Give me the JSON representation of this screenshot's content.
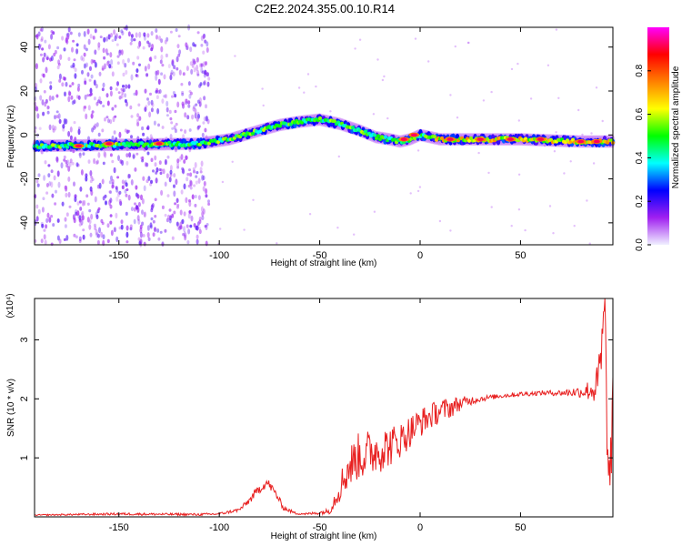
{
  "chart_data": [
    {
      "type": "heatmap",
      "title": "C2E2.2024.355.00.10.R14",
      "xlabel": "Height of straight line (km)",
      "ylabel": "Frequency (Hz)",
      "xlim": [
        -192,
        96
      ],
      "ylim": [
        -50,
        49
      ],
      "xticks": [
        -150,
        -100,
        -50,
        0,
        50
      ],
      "yticks": [
        -40,
        -20,
        0,
        20,
        40
      ],
      "colorbar": {
        "label": "Normalized spectral amplitude",
        "range": [
          0,
          1
        ],
        "ticks": [
          "0.0",
          "0.2",
          "0.4",
          "0.6",
          "0.8"
        ],
        "colors": [
          "#f0f0ff",
          "#a020f0",
          "#0000ff",
          "#00ffff",
          "#00ff00",
          "#ffff00",
          "#ff8000",
          "#ff0000",
          "#ff00ff"
        ]
      },
      "ridge": {
        "x": [
          -192,
          -150,
          -110,
          -95,
          -80,
          -70,
          -60,
          -50,
          -40,
          -30,
          -22,
          -15,
          -10,
          -5,
          0,
          10,
          30,
          50,
          80,
          96
        ],
        "y": [
          -5,
          -4.5,
          -4,
          -2,
          2,
          4.5,
          6,
          7,
          5,
          2,
          -1,
          -2,
          -3,
          -2,
          0,
          -2,
          -2,
          -2,
          -3,
          -3
        ]
      },
      "hotspots": [
        {
          "x": -170,
          "y": -5
        },
        {
          "x": -155,
          "y": -4
        },
        {
          "x": -130,
          "y": -4
        },
        {
          "x": -8,
          "y": -2
        },
        {
          "x": -3,
          "y": 0
        },
        {
          "x": 15,
          "y": -2
        },
        {
          "x": 30,
          "y": -2
        },
        {
          "x": 45,
          "y": -2
        },
        {
          "x": 60,
          "y": -2
        },
        {
          "x": 80,
          "y": -3
        },
        {
          "x": 88,
          "y": -3
        }
      ]
    },
    {
      "type": "line",
      "xlabel": "Height of straight line (km)",
      "ylabel": "SNR (10 * v/v)",
      "yscale_label": "(x10⁴)",
      "xlim": [
        -192,
        96
      ],
      "ylim": [
        0,
        3.7
      ],
      "xticks": [
        -150,
        -100,
        -50,
        0,
        50
      ],
      "yticks": [
        1,
        2,
        3
      ],
      "series": [
        {
          "color": "#e82020",
          "x": [
            -192,
            -150,
            -110,
            -100,
            -90,
            -85,
            -80,
            -76,
            -72,
            -68,
            -62,
            -56,
            -50,
            -45,
            -40,
            -36,
            -32,
            -28,
            -24,
            -20,
            -15,
            -10,
            -5,
            0,
            5,
            10,
            15,
            20,
            25,
            30,
            40,
            50,
            60,
            70,
            80,
            85,
            88,
            90,
            92,
            94,
            96
          ],
          "y": [
            0.03,
            0.05,
            0.04,
            0.05,
            0.12,
            0.28,
            0.48,
            0.58,
            0.4,
            0.15,
            0.06,
            0.05,
            0.07,
            0.1,
            0.5,
            0.8,
            1.0,
            1.05,
            1.1,
            1.15,
            1.2,
            1.3,
            1.45,
            1.6,
            1.7,
            1.8,
            1.85,
            1.92,
            1.97,
            2.0,
            2.05,
            2.08,
            2.1,
            2.1,
            2.12,
            2.15,
            2.2,
            2.6,
            3.5,
            0.2,
            1.9
          ],
          "noise": [
            0.01,
            0.02,
            0.02,
            0.02,
            0.03,
            0.06,
            0.08,
            0.08,
            0.07,
            0.04,
            0.02,
            0.02,
            0.03,
            0.05,
            0.25,
            0.35,
            0.4,
            0.42,
            0.4,
            0.4,
            0.35,
            0.3,
            0.28,
            0.25,
            0.22,
            0.2,
            0.18,
            0.12,
            0.08,
            0.05,
            0.04,
            0.04,
            0.04,
            0.05,
            0.1,
            0.2,
            0.35,
            0.5,
            0.6,
            0.8,
            0.5
          ]
        }
      ]
    }
  ]
}
